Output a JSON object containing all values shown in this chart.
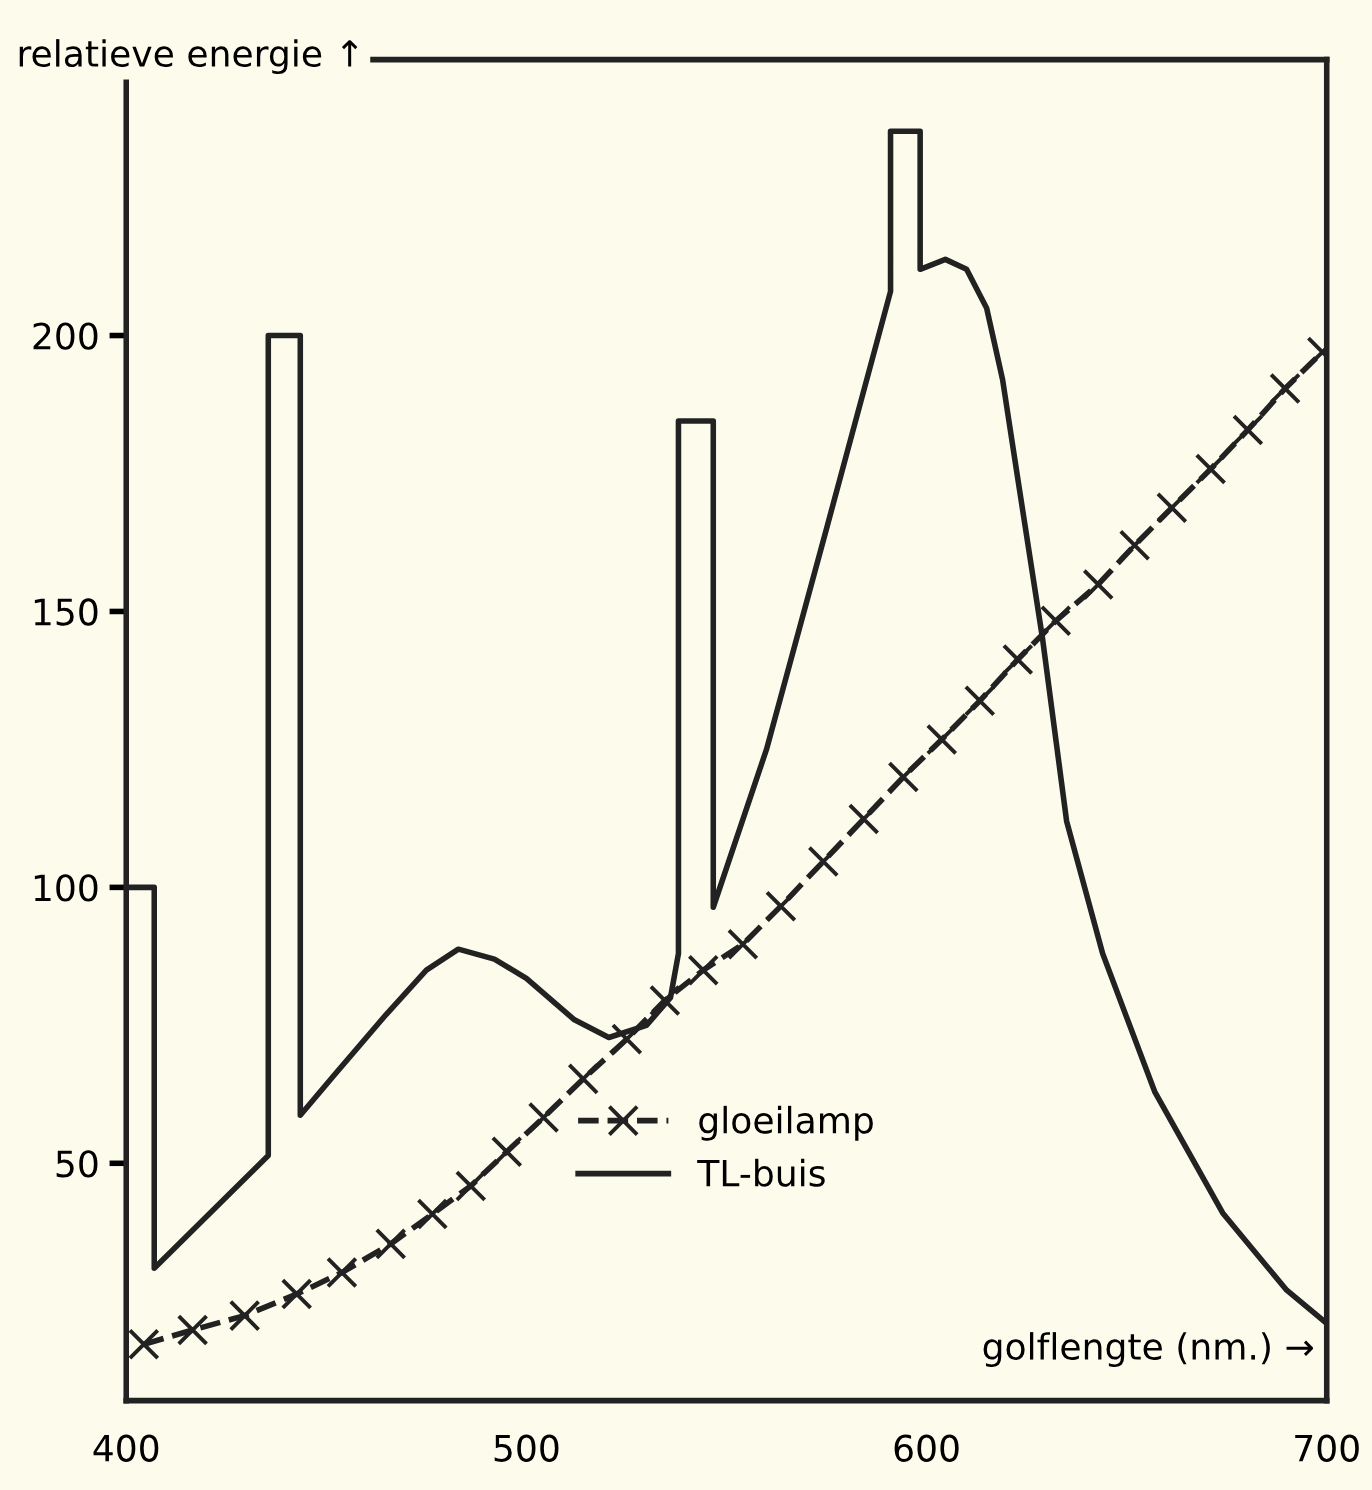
{
  "chart_data": {
    "type": "line",
    "xlabel": "golflengte (nm.) →",
    "ylabel": "relatieve energie ↑",
    "xlim": [
      400,
      700
    ],
    "ylim": [
      7,
      250
    ],
    "xticks": [
      400,
      500,
      600,
      700
    ],
    "yticks": [
      50,
      100,
      150,
      200
    ],
    "grid": false,
    "legend": "bottom",
    "series": [
      {
        "name": "gloeilamp",
        "color": "#222222",
        "marker": "cross",
        "line_style": "dashed",
        "x": [
          404.4,
          416.6,
          429.6,
          442.6,
          453.9,
          466.1,
          476.5,
          486.1,
          495.1,
          504.3,
          514.2,
          525.1,
          534.6,
          544.2,
          554.1,
          563.6,
          574.2,
          584.3,
          594.2,
          603.8,
          613.3,
          622.8,
          632.3,
          642.9,
          652,
          661.3,
          671,
          680.3,
          689.6,
          698.9
        ],
        "values": [
          17.2,
          19.8,
          22.4,
          26.3,
          30.2,
          35.4,
          40.8,
          45.9,
          52.1,
          58.3,
          65.3,
          72.5,
          79.5,
          85,
          89.7,
          96.6,
          104.7,
          112.4,
          120,
          126.8,
          133.8,
          141.3,
          148.3,
          154.9,
          162,
          168.8,
          175.8,
          182.9,
          190.4,
          197
        ]
      },
      {
        "name": "TL-buis",
        "color": "#222222",
        "marker": "none",
        "line_style": "solid",
        "x": [
          400,
          407,
          407,
          435.5,
          435.5,
          443.5,
          443.5,
          452,
          465,
          475,
          483,
          492,
          500,
          512,
          520.6,
          530,
          536,
          538,
          538,
          546.7,
          546.7,
          560,
          575,
          591,
          591,
          598.4,
          598.4,
          604.7,
          610,
          615,
          619,
          622.6,
          629,
          635,
          644,
          657,
          674,
          690,
          700
        ],
        "values": [
          100,
          100,
          31,
          51.4,
          200,
          200,
          58.7,
          66,
          77,
          85,
          88.8,
          87,
          83.5,
          76,
          72.8,
          75,
          80,
          88,
          184.5,
          184.5,
          96.4,
          125,
          165,
          208,
          237,
          237,
          212,
          213.8,
          212,
          205,
          192,
          175,
          145,
          112,
          88,
          63,
          41,
          27,
          21
        ]
      }
    ]
  }
}
